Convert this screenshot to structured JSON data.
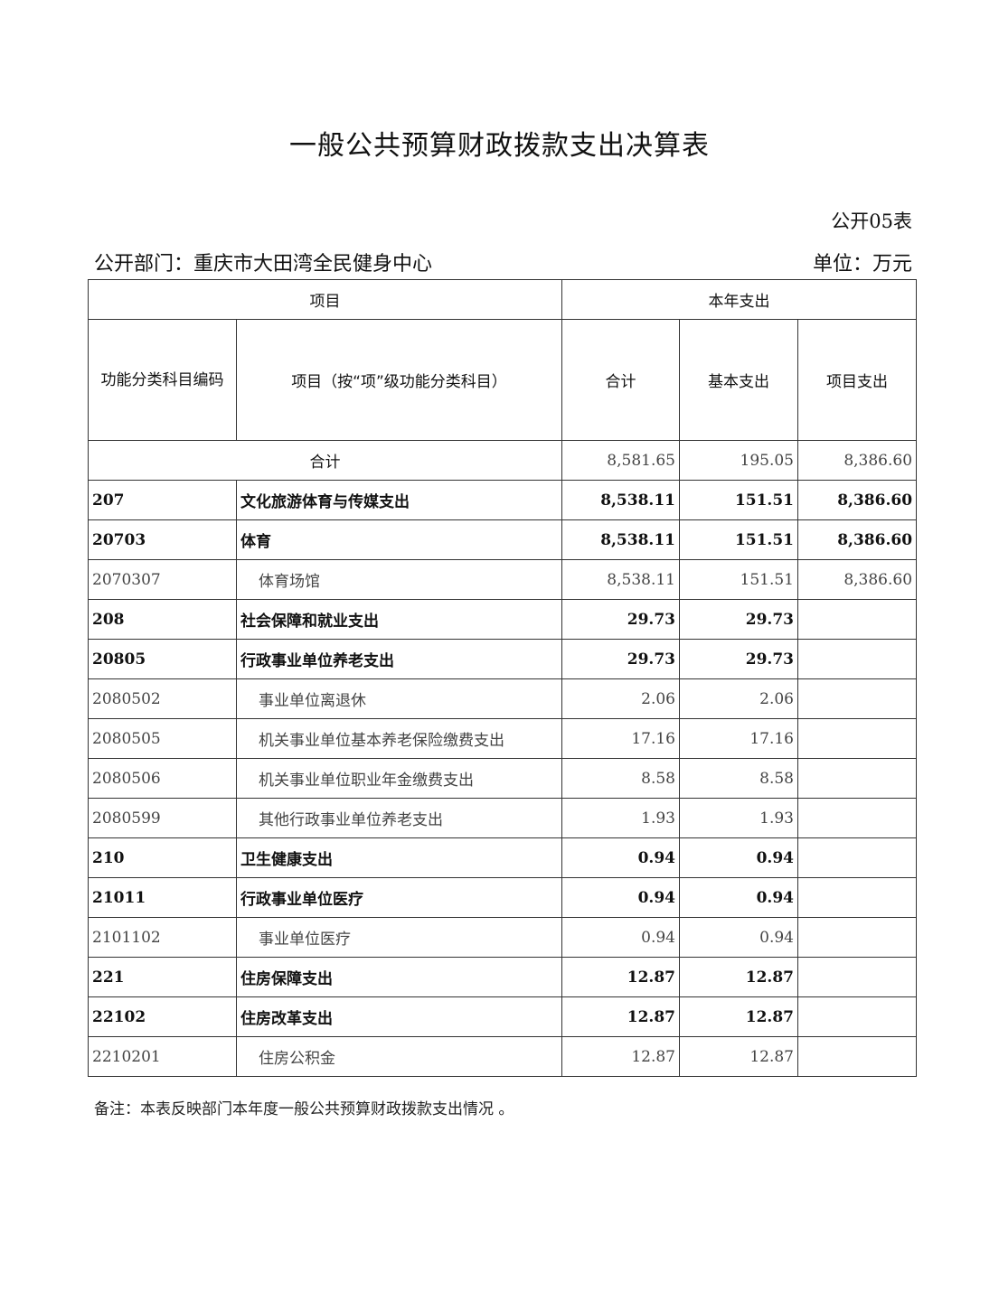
{
  "title": "一般公共预算财政拨款支出决算表",
  "form_no": "公开05表",
  "department": "公开部门：重庆市大田湾全民健身中心",
  "unit": "单位：万元",
  "table": {
    "header_project": "项目",
    "header_year": "本年支出",
    "col_code": "功能分类科目编码",
    "col_name": "项目（按“项”级功能分类科目）",
    "col_total": "合计",
    "col_basic": "基本支出",
    "col_project": "项目支出",
    "total_row": {
      "label": "合计",
      "total": "8,581.65",
      "basic": "195.05",
      "project": "8,386.60"
    },
    "rows": [
      {
        "code": "207",
        "name": "文化旅游体育与传媒支出",
        "total": "8,538.11",
        "basic": "151.51",
        "project": "8,386.60",
        "level": 1
      },
      {
        "code": "20703",
        "name": "体育",
        "total": "8,538.11",
        "basic": "151.51",
        "project": "8,386.60",
        "level": 2
      },
      {
        "code": "2070307",
        "name": "体育场馆",
        "total": "8,538.11",
        "basic": "151.51",
        "project": "8,386.60",
        "level": 3
      },
      {
        "code": "208",
        "name": "社会保障和就业支出",
        "total": "29.73",
        "basic": "29.73",
        "project": "",
        "level": 1
      },
      {
        "code": "20805",
        "name": "行政事业单位养老支出",
        "total": "29.73",
        "basic": "29.73",
        "project": "",
        "level": 2
      },
      {
        "code": "2080502",
        "name": "事业单位离退休",
        "total": "2.06",
        "basic": "2.06",
        "project": "",
        "level": 3
      },
      {
        "code": "2080505",
        "name": "机关事业单位基本养老保险缴费支出",
        "total": "17.16",
        "basic": "17.16",
        "project": "",
        "level": 3
      },
      {
        "code": "2080506",
        "name": "机关事业单位职业年金缴费支出",
        "total": "8.58",
        "basic": "8.58",
        "project": "",
        "level": 3
      },
      {
        "code": "2080599",
        "name": "其他行政事业单位养老支出",
        "total": "1.93",
        "basic": "1.93",
        "project": "",
        "level": 3
      },
      {
        "code": "210",
        "name": "卫生健康支出",
        "total": "0.94",
        "basic": "0.94",
        "project": "",
        "level": 1
      },
      {
        "code": "21011",
        "name": "行政事业单位医疗",
        "total": "0.94",
        "basic": "0.94",
        "project": "",
        "level": 2
      },
      {
        "code": "2101102",
        "name": "事业单位医疗",
        "total": "0.94",
        "basic": "0.94",
        "project": "",
        "level": 3
      },
      {
        "code": "221",
        "name": "住房保障支出",
        "total": "12.87",
        "basic": "12.87",
        "project": "",
        "level": 1
      },
      {
        "code": "22102",
        "name": "住房改革支出",
        "total": "12.87",
        "basic": "12.87",
        "project": "",
        "level": 2
      },
      {
        "code": "2210201",
        "name": "住房公积金",
        "total": "12.87",
        "basic": "12.87",
        "project": "",
        "level": 3
      }
    ]
  },
  "note": "备注：本表反映部门本年度一般公共预算财政拨款支出情况 。"
}
